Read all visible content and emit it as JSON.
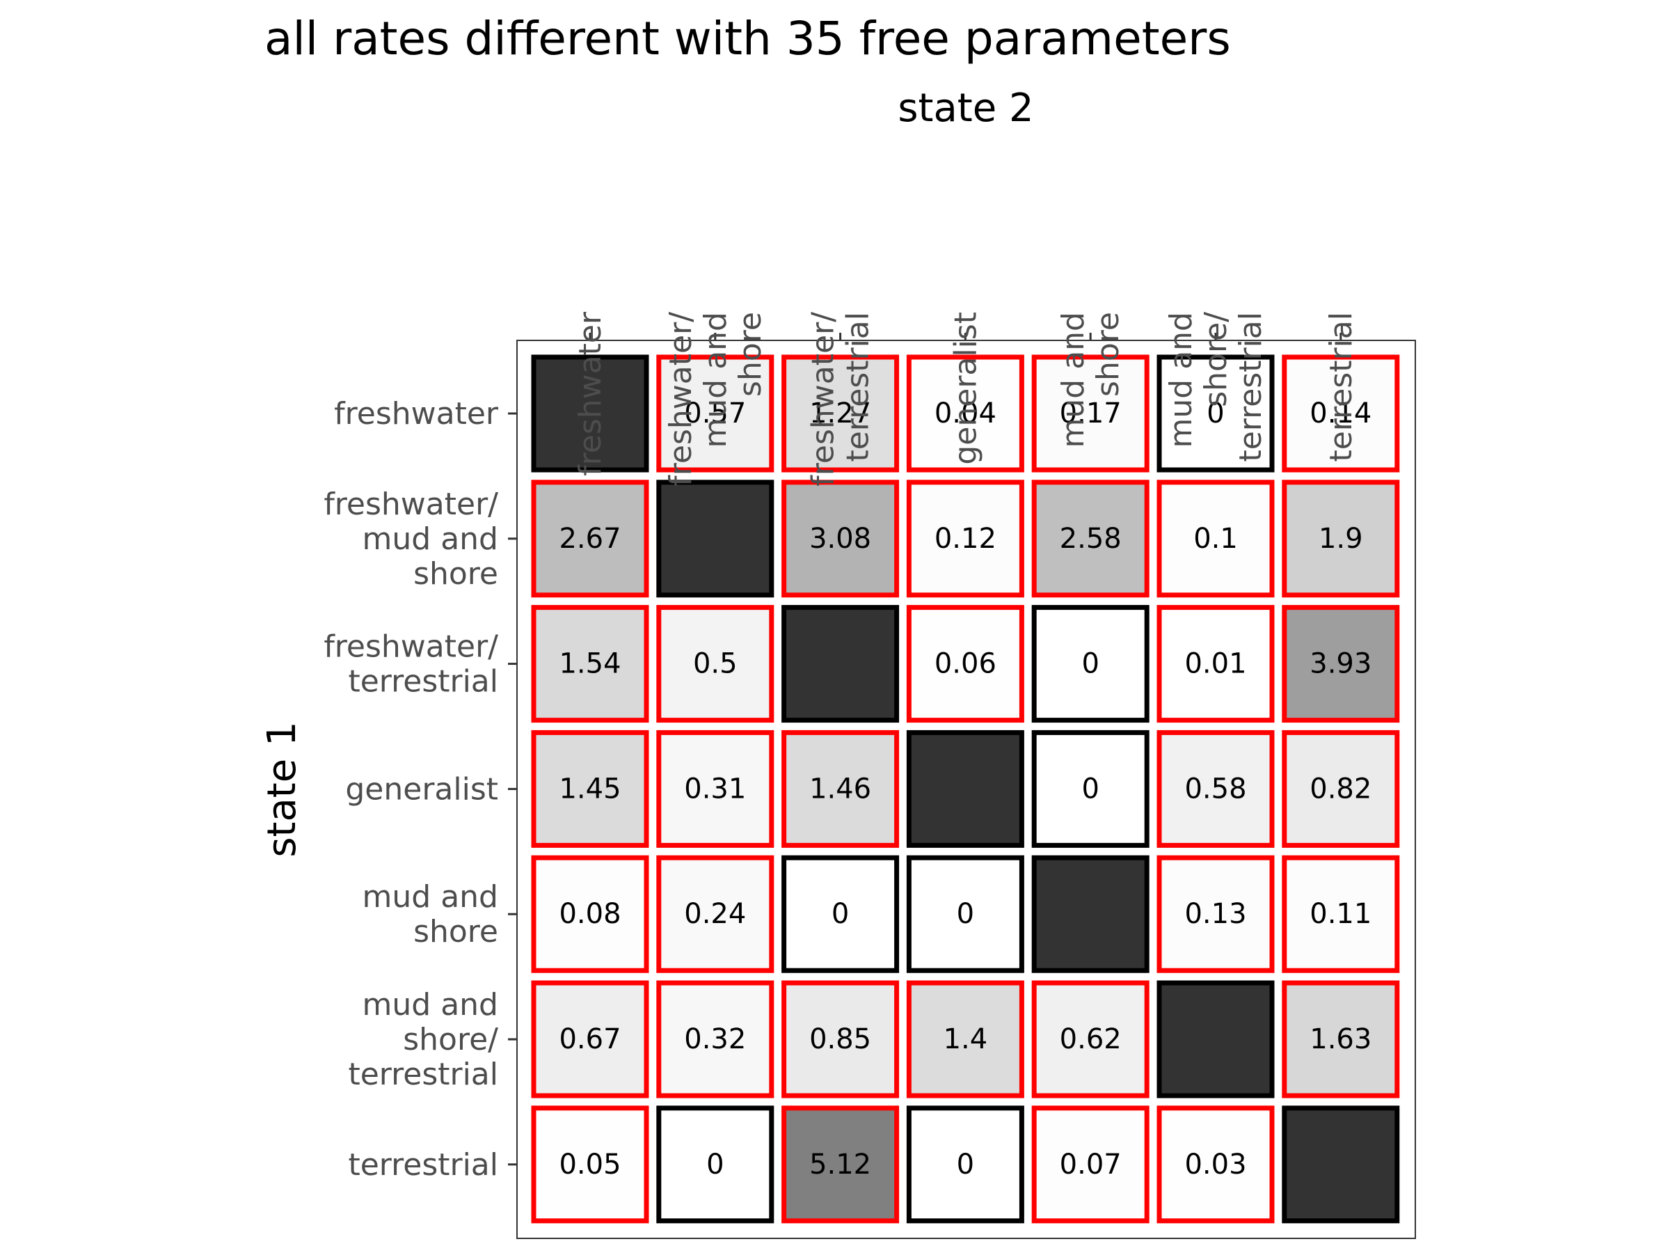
{
  "chart_data": {
    "type": "heatmap",
    "title": "all rates different with 35 free parameters",
    "xlabel": "state 2",
    "ylabel": "state 1",
    "states": [
      "freshwater",
      "freshwater/\nmud and\nshore",
      "freshwater/\nterrestrial",
      "generalist",
      "mud and\nshore",
      "mud and\nshore/\nterrestrial",
      "terrestrial"
    ],
    "values": [
      [
        null,
        0.57,
        1.27,
        0.04,
        0.17,
        0,
        0.14
      ],
      [
        2.67,
        null,
        3.08,
        0.12,
        2.58,
        0.1,
        1.9
      ],
      [
        1.54,
        0.5,
        null,
        0.06,
        0,
        0.01,
        3.93
      ],
      [
        1.45,
        0.31,
        1.46,
        null,
        0,
        0.58,
        0.82
      ],
      [
        0.08,
        0.24,
        0,
        0,
        null,
        0.13,
        0.11
      ],
      [
        0.67,
        0.32,
        0.85,
        1.4,
        0.62,
        null,
        1.63
      ],
      [
        0.05,
        0,
        5.12,
        0,
        0.07,
        0.03,
        null
      ]
    ],
    "value_range": [
      0,
      5.12
    ],
    "fill_low": "#ffffff",
    "fill_high": "#808080",
    "diagonal_fill": "#333333",
    "border_free_parameter": "#ff0000",
    "border_other": "#000000",
    "legend": "none"
  }
}
